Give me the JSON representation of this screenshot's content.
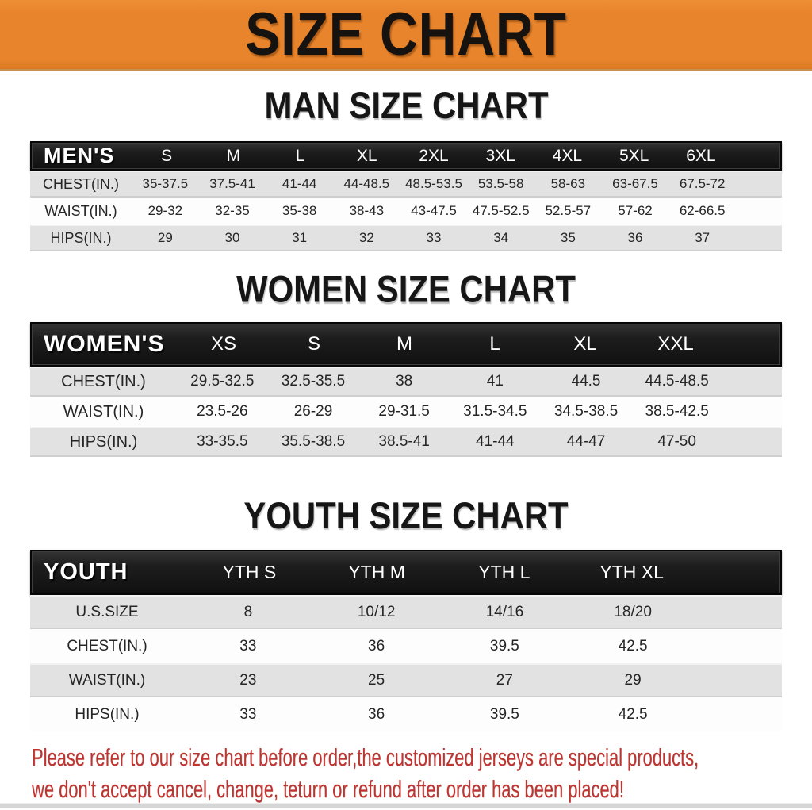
{
  "banner": {
    "title": "SIZE CHART"
  },
  "colors": {
    "banner_bg": "#E8842C",
    "bar_bg": "#1A1A1A",
    "row_gray": "#E2E2E2",
    "row_white": "#FDFDFD",
    "disclaimer_red": "#BE3431"
  },
  "tables": {
    "men": {
      "heading": "MAN SIZE CHART",
      "label": "MEN'S",
      "sizes": [
        "S",
        "M",
        "L",
        "XL",
        "2XL",
        "3XL",
        "4XL",
        "5XL",
        "6XL"
      ],
      "rows": [
        {
          "label": "CHEST(IN.)",
          "values": [
            "35-37.5",
            "37.5-41",
            "41-44",
            "44-48.5",
            "48.5-53.5",
            "53.5-58",
            "58-63",
            "63-67.5",
            "67.5-72"
          ]
        },
        {
          "label": "WAIST(IN.)",
          "values": [
            "29-32",
            "32-35",
            "35-38",
            "38-43",
            "43-47.5",
            "47.5-52.5",
            "52.5-57",
            "57-62",
            "62-66.5"
          ]
        },
        {
          "label": "HIPS(IN.)",
          "values": [
            "29",
            "30",
            "31",
            "32",
            "33",
            "34",
            "35",
            "36",
            "37"
          ]
        }
      ]
    },
    "women": {
      "heading": "WOMEN SIZE CHART",
      "label": "WOMEN'S",
      "sizes": [
        "XS",
        "S",
        "M",
        "L",
        "XL",
        "XXL"
      ],
      "rows": [
        {
          "label": "CHEST(IN.)",
          "values": [
            "29.5-32.5",
            "32.5-35.5",
            "38",
            "41",
            "44.5",
            "44.5-48.5"
          ]
        },
        {
          "label": "WAIST(IN.)",
          "values": [
            "23.5-26",
            "26-29",
            "29-31.5",
            "31.5-34.5",
            "34.5-38.5",
            "38.5-42.5"
          ]
        },
        {
          "label": "HIPS(IN.)",
          "values": [
            "33-35.5",
            "35.5-38.5",
            "38.5-41",
            "41-44",
            "44-47",
            "47-50"
          ]
        }
      ]
    },
    "youth": {
      "heading": "YOUTH SIZE CHART",
      "label": "YOUTH",
      "sizes": [
        "YTH S",
        "YTH M",
        "YTH L",
        "YTH XL"
      ],
      "rows": [
        {
          "label": "U.S.SIZE",
          "values": [
            "8",
            "10/12",
            "14/16",
            "18/20"
          ]
        },
        {
          "label": "CHEST(IN.)",
          "values": [
            "33",
            "36",
            "39.5",
            "42.5"
          ]
        },
        {
          "label": "WAIST(IN.)",
          "values": [
            "23",
            "25",
            "27",
            "29"
          ]
        },
        {
          "label": "HIPS(IN.)",
          "values": [
            "33",
            "36",
            "39.5",
            "42.5"
          ]
        }
      ]
    }
  },
  "disclaimer": {
    "line1": "Please refer to our size chart before order,the customized jerseys are special products,",
    "line2": "we don't accept cancel, change, teturn or refund after order has been placed!"
  }
}
